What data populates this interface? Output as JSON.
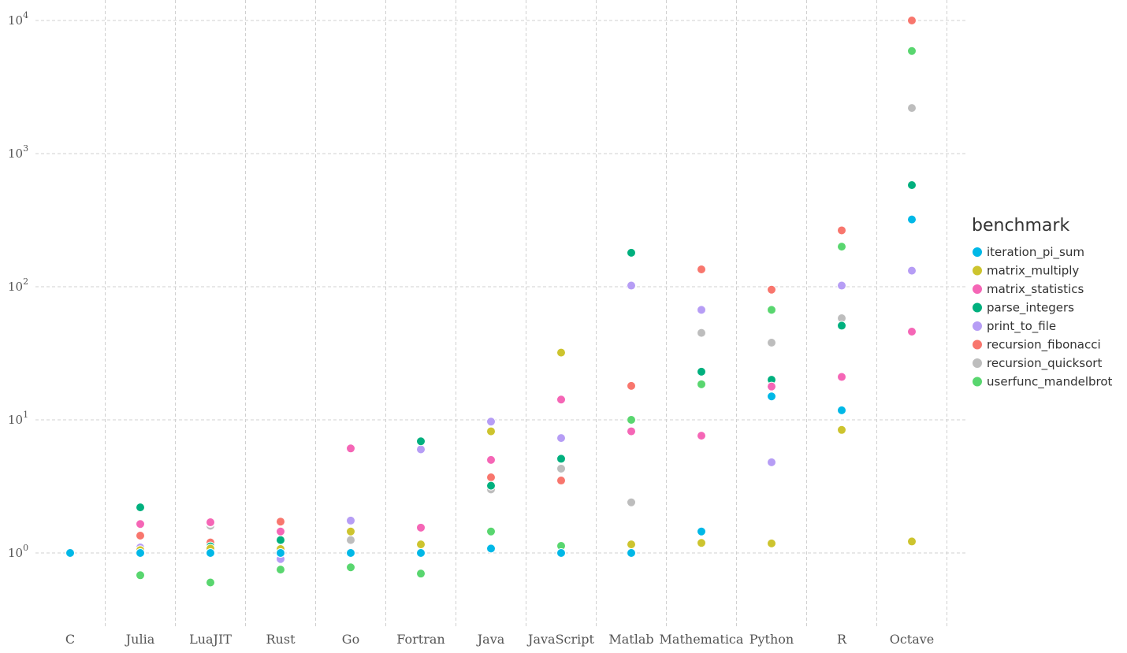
{
  "chart_data": {
    "type": "scatter",
    "title": "",
    "xlabel": "",
    "ylabel": "",
    "y_scale": "log10",
    "ylim": [
      0.4,
      10000
    ],
    "y_ticks": [
      {
        "value": 1,
        "base": "10",
        "exp": "0"
      },
      {
        "value": 10,
        "base": "10",
        "exp": "1"
      },
      {
        "value": 100,
        "base": "10",
        "exp": "2"
      },
      {
        "value": 1000,
        "base": "10",
        "exp": "3"
      },
      {
        "value": 10000,
        "base": "10",
        "exp": "4"
      }
    ],
    "grid": true,
    "legend_title": "benchmark",
    "legend_position": "right",
    "categories": [
      "C",
      "Julia",
      "LuaJIT",
      "Rust",
      "Go",
      "Fortran",
      "Java",
      "JavaScript",
      "Matlab",
      "Mathematica",
      "Python",
      "R",
      "Octave"
    ],
    "series": [
      {
        "name": "iteration_pi_sum",
        "color": "#00B8E7",
        "values": [
          1.0,
          1.0,
          1.0,
          1.0,
          1.0,
          1.0,
          1.08,
          1.0,
          1.0,
          1.45,
          15.0,
          11.8,
          320
        ]
      },
      {
        "name": "matrix_multiply",
        "color": "#CDC42E",
        "values": [
          1.0,
          1.05,
          1.08,
          1.07,
          1.45,
          1.16,
          8.2,
          32,
          1.16,
          1.19,
          1.18,
          8.4,
          1.22
        ]
      },
      {
        "name": "matrix_statistics",
        "color": "#F566B6",
        "values": [
          1.0,
          1.65,
          1.7,
          1.45,
          6.1,
          1.55,
          5.0,
          14.2,
          8.2,
          7.6,
          17.8,
          21,
          46
        ]
      },
      {
        "name": "parse_integers",
        "color": "#00B07E",
        "values": [
          1.0,
          2.2,
          1.12,
          1.25,
          1.0,
          6.9,
          3.2,
          5.1,
          180,
          23,
          20,
          51,
          580
        ]
      },
      {
        "name": "print_to_file",
        "color": "#B69DF5",
        "values": [
          1.0,
          1.1,
          1.68,
          0.9,
          1.75,
          6.0,
          9.7,
          7.3,
          102,
          67,
          4.8,
          102,
          132
        ]
      },
      {
        "name": "recursion_fibonacci",
        "color": "#F8766D",
        "values": [
          1.0,
          1.35,
          1.2,
          1.72,
          1.0,
          1.0,
          3.7,
          3.5,
          18,
          135,
          95,
          265,
          10000
        ]
      },
      {
        "name": "recursion_quicksort",
        "color": "#BDBDBD",
        "values": [
          1.0,
          1.0,
          1.6,
          1.0,
          1.25,
          1.0,
          3.0,
          4.3,
          2.4,
          45,
          38,
          58,
          2200
        ]
      },
      {
        "name": "userfunc_mandelbrot",
        "color": "#59D66F",
        "values": [
          1.0,
          0.68,
          0.6,
          0.75,
          0.78,
          0.7,
          1.45,
          1.13,
          10,
          18.5,
          67,
          200,
          5900
        ]
      }
    ]
  }
}
